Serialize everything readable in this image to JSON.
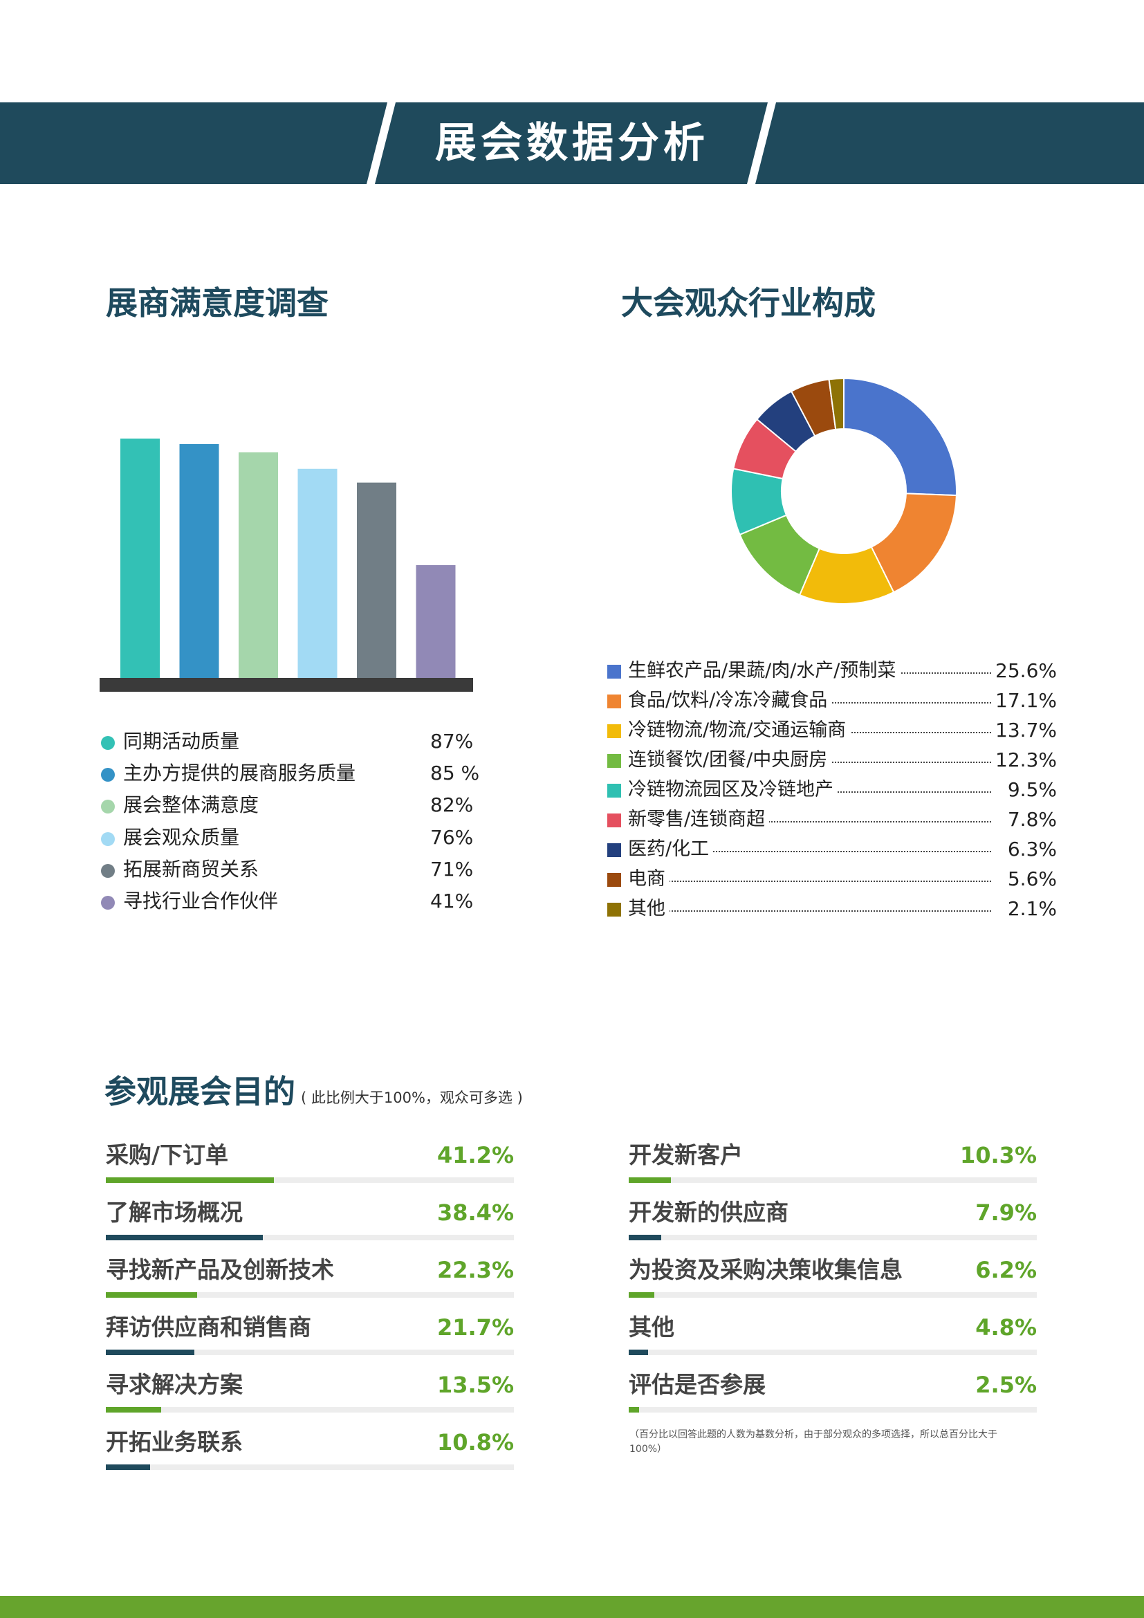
{
  "header": {
    "title": "展会数据分析",
    "color": "#1f4a5c"
  },
  "satisfaction": {
    "title": "展商满意度调查",
    "chart_data": {
      "type": "bar",
      "categories": [
        "同期活动质量",
        "主办方提供的展商服务质量",
        "展会整体满意度",
        "展会观众质量",
        "拓展新商贸关系",
        "寻找行业合作伙伴"
      ],
      "values": [
        87,
        85,
        82,
        76,
        71,
        41
      ],
      "value_labels": [
        "87%",
        "85 %",
        "82%",
        "76%",
        "71%",
        "41%"
      ],
      "colors": [
        "#33c1b5",
        "#3492c6",
        "#a5d6ab",
        "#a2daf4",
        "#717e86",
        "#9189b6"
      ],
      "grid": false
    }
  },
  "industry": {
    "title": "大会观众行业构成",
    "chart_data": {
      "type": "pie",
      "donut": true,
      "labels": [
        "生鲜农产品/果蔬/肉/水产/预制菜",
        "食品/饮料/冷冻冷藏食品",
        "冷链物流/物流/交通运输商",
        "连锁餐饮/团餐/中央厨房",
        "冷链物流园区及冷链地产",
        "新零售/连锁商超",
        "医药/化工",
        "电商",
        "其他"
      ],
      "values": [
        25.6,
        17.1,
        13.7,
        12.3,
        9.5,
        7.8,
        6.3,
        5.6,
        2.1
      ],
      "value_labels": [
        "25.6%",
        "17.1%",
        "13.7%",
        "12.3%",
        "9.5%",
        "7.8%",
        "6.3%",
        "5.6%",
        "2.1%"
      ],
      "colors": [
        "#4a74cc",
        "#ef8431",
        "#f2bb0a",
        "#73bb42",
        "#2fc0b2",
        "#e5505f",
        "#23407e",
        "#9b4a0e",
        "#8e7205"
      ]
    }
  },
  "purpose": {
    "title": "参观展会目的",
    "subtitle": "( 此比例大于100%，观众可多选 )",
    "note": "（百分比以回答此题的人数为基数分析，由于部分观众的多项选择，所以总百分比大于100%）",
    "chart_data": {
      "type": "bar",
      "orientation": "horizontal",
      "categories": [
        "采购/下订单",
        "了解市场概况",
        "寻找新产品及创新技术",
        "拜访供应商和销售商",
        "寻求解决方案",
        "开拓业务联系",
        "开发新客户",
        "开发新的供应商",
        "为投资及采购决策收集信息",
        "其他",
        "评估是否参展"
      ],
      "values": [
        41.2,
        38.4,
        22.3,
        21.7,
        13.5,
        10.8,
        10.3,
        7.9,
        6.2,
        4.8,
        2.5
      ],
      "value_labels": [
        "41.2%",
        "38.4%",
        "22.3%",
        "21.7%",
        "13.5%",
        "10.8%",
        "10.3%",
        "7.9%",
        "6.2%",
        "4.8%",
        "2.5%"
      ],
      "fill_colors": [
        "#5fa52a",
        "#1f4a5c"
      ],
      "track_color": "#ededed",
      "xlim": [
        0,
        100
      ]
    }
  },
  "footer": {
    "color": "#67a42d"
  }
}
